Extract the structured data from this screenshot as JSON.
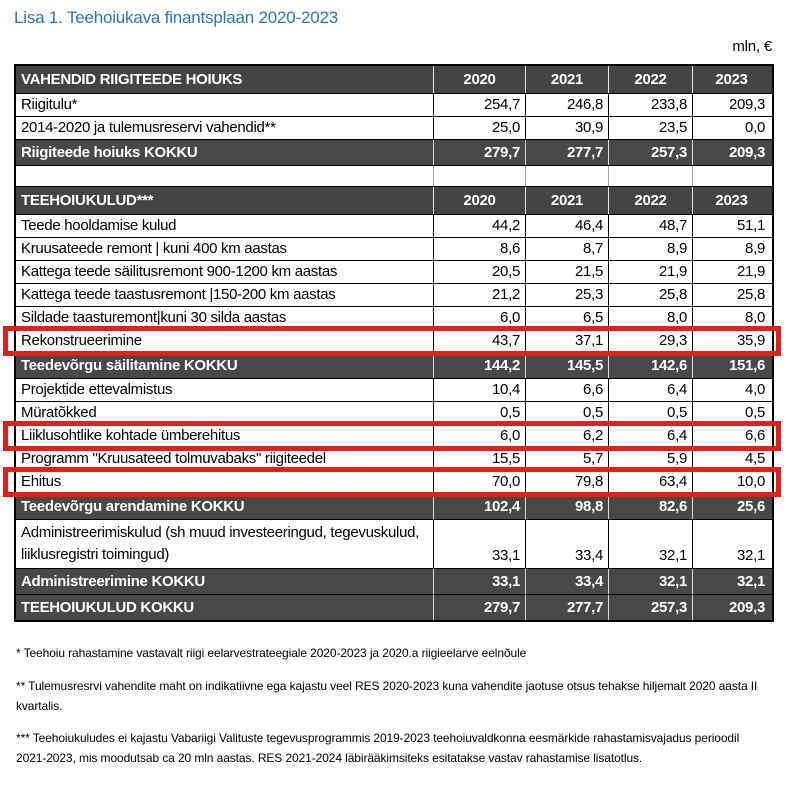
{
  "page": {
    "title": "Lisa 1. Teehoiukava finantsplaan 2020-2023",
    "unit_label": "mln, €"
  },
  "colors": {
    "title_blue": "#2e75b6",
    "dark_row_gray": "#484848",
    "highlight_red": "#e02119"
  },
  "table": {
    "years": [
      "2020",
      "2021",
      "2022",
      "2023"
    ],
    "rows": [
      {
        "style": "header",
        "label": "VAHENDID RIIGITEEDE HOIUKS",
        "values": [
          "2020",
          "2021",
          "2022",
          "2023"
        ]
      },
      {
        "style": "normal",
        "label": "Riigitulu*",
        "values": [
          "254,7",
          "246,8",
          "233,8",
          "209,3"
        ]
      },
      {
        "style": "normal",
        "label": "2014-2020 ja  tulemusreservi vahendid**",
        "values": [
          "25,0",
          "30,9",
          "23,5",
          "0,0"
        ]
      },
      {
        "style": "total",
        "label": "Riigiteede hoiuks  KOKKU",
        "values": [
          "279,7",
          "277,7",
          "257,3",
          "209,3"
        ]
      },
      {
        "style": "spacer",
        "label": "",
        "values": [
          "",
          "",
          "",
          ""
        ]
      },
      {
        "style": "header",
        "label": "TEEHOIUKULUD***",
        "values": [
          "2020",
          "2021",
          "2022",
          "2023"
        ]
      },
      {
        "style": "normal",
        "label": "Teede hooldamise kulud",
        "values": [
          "44,2",
          "46,4",
          "48,7",
          "51,1"
        ]
      },
      {
        "style": "normal",
        "label": "Kruusateede remont | kuni 400 km aastas",
        "values": [
          "8,6",
          "8,7",
          "8,9",
          "8,9"
        ]
      },
      {
        "style": "normal",
        "label": "Kattega teede säilitusremont 900-1200 km aastas",
        "values": [
          "20,5",
          "21,5",
          "21,9",
          "21,9"
        ]
      },
      {
        "style": "normal",
        "label": "Kattega teede taastusremont |150-200 km aastas",
        "values": [
          "21,2",
          "25,3",
          "25,8",
          "25,8"
        ]
      },
      {
        "style": "normal",
        "label": "Sildade taasturemont|kuni 30 silda aastas",
        "values": [
          "6,0",
          "6,5",
          "8,0",
          "8,0"
        ]
      },
      {
        "style": "normal",
        "highlight": true,
        "label": "Rekonstrueerimine",
        "values": [
          "43,7",
          "37,1",
          "29,3",
          "35,9"
        ]
      },
      {
        "style": "total",
        "label": "Teedevõrgu säilitamine KOKKU",
        "values": [
          "144,2",
          "145,5",
          "142,6",
          "151,6"
        ]
      },
      {
        "style": "normal",
        "label": "Projektide ettevalmistus",
        "values": [
          "10,4",
          "6,6",
          "6,4",
          "4,0"
        ]
      },
      {
        "style": "normal",
        "label": "Müratõkked",
        "values": [
          "0,5",
          "0,5",
          "0,5",
          "0,5"
        ]
      },
      {
        "style": "normal",
        "highlight": true,
        "label": "Liiklusohtlike kohtade ümberehitus",
        "values": [
          "6,0",
          "6,2",
          "6,4",
          "6,6"
        ]
      },
      {
        "style": "normal",
        "label": "Programm \"Kruusateed tolmuvabaks\" riigiteedel",
        "values": [
          "15,5",
          "5,7",
          "5,9",
          "4,5"
        ]
      },
      {
        "style": "normal",
        "highlight": true,
        "label": "Ehitus",
        "values": [
          "70,0",
          "79,8",
          "63,4",
          "10,0"
        ]
      },
      {
        "style": "total",
        "label": "Teedevõrgu arendamine KOKKU",
        "values": [
          "102,4",
          "98,8",
          "82,6",
          "25,6"
        ]
      },
      {
        "style": "tall",
        "label": "Administreerimiskulud (sh muud investeeringud, tegevuskulud, liiklusregistri toimingud)",
        "values": [
          "33,1",
          "33,4",
          "32,1",
          "32,1"
        ]
      },
      {
        "style": "total",
        "label": "Administreerimine KOKKU",
        "values": [
          "33,1",
          "33,4",
          "32,1",
          "32,1"
        ]
      },
      {
        "style": "total",
        "label": "TEEHOIUKULUD  KOKKU",
        "values": [
          "279,7",
          "277,7",
          "257,3",
          "209,3"
        ]
      }
    ]
  },
  "footnotes": [
    "* Teehoiu rahastamine vastavalt riigi eelarvestrateegiale 2020-2023 ja 2020.a riigieelarve eelnõule",
    "** Tulemusresrvi vahendite maht on indikatiivne ega kajastu veel RES 2020-2023 kuna vahendite jaotuse otsus tehakse hiljemalt 2020 aasta II kvartalis.",
    "*** Teehoiukuludes ei kajastu Vabariigi Valituste tegevusprogrammis 2019-2023 teehoiuvaldkonna eesmärkide rahastamisvajadus perioodil 2021-2023, mis moodutsab ca 20 mln aastas. RES 2021-2024 läbirääkimsiteks esitatakse vastav rahastamise lisatotlus."
  ]
}
